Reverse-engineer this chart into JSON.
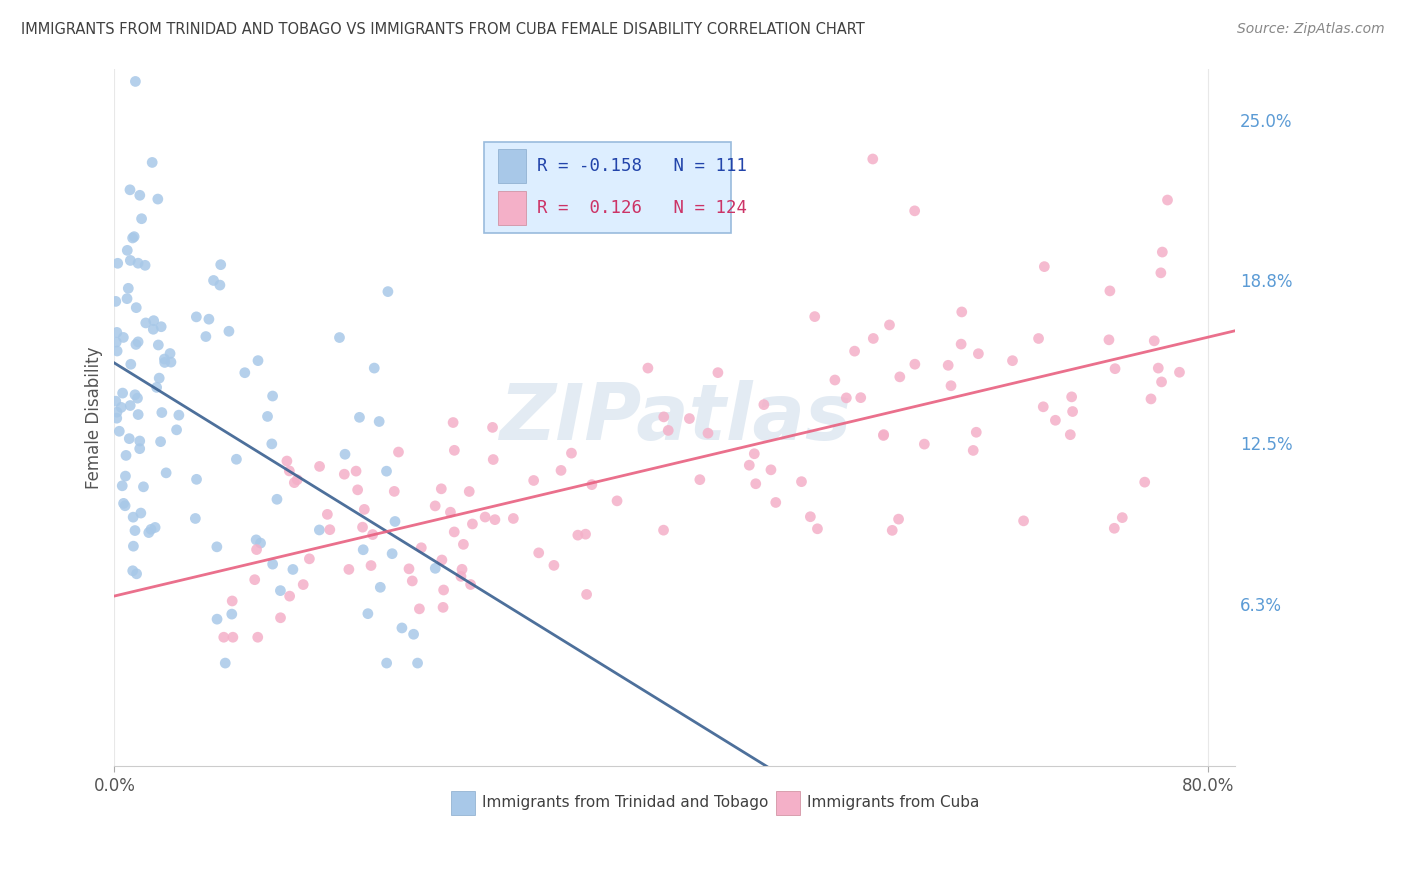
{
  "title": "IMMIGRANTS FROM TRINIDAD AND TOBAGO VS IMMIGRANTS FROM CUBA FEMALE DISABILITY CORRELATION CHART",
  "source": "Source: ZipAtlas.com",
  "ylabel": "Female Disability",
  "ytick_labels": [
    "6.3%",
    "12.5%",
    "18.8%",
    "25.0%"
  ],
  "ytick_values": [
    0.063,
    0.125,
    0.188,
    0.25
  ],
  "ymin": 0.0,
  "ymax": 0.27,
  "xmin": 0.0,
  "xmax": 0.82,
  "series1_name": "Immigrants from Trinidad and Tobago",
  "series1_color": "#a8c8e8",
  "series1_line_color": "#3a6090",
  "series1_R": -0.158,
  "series1_N": 111,
  "series2_name": "Immigrants from Cuba",
  "series2_color": "#f4b0c8",
  "series2_line_color": "#e86080",
  "series2_R": 0.126,
  "series2_N": 124,
  "watermark": "ZIPatlas",
  "grid_color": "#e8e8e8",
  "title_color": "#404040",
  "axis_tick_color": "#5b9bd5",
  "legend_bg": "#ddeeff",
  "legend_border": "#99bbdd",
  "legend_text_color1": "#2244aa",
  "legend_text_color2": "#cc3366"
}
